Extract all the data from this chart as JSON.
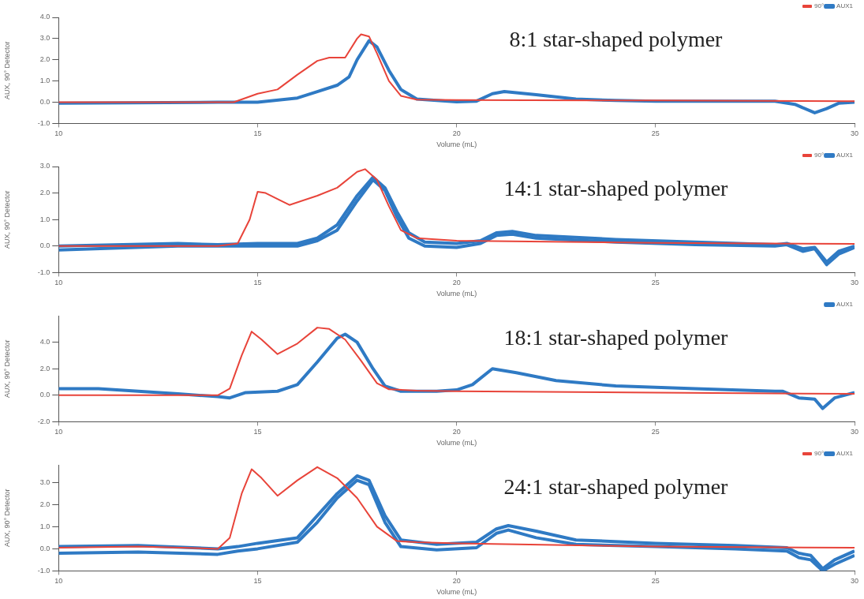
{
  "chart_data": [
    {
      "type": "line",
      "title": "8:1 star-shaped polymer",
      "xlabel": "Volume (mL)",
      "ylabel": "AUX, 90° Detector",
      "xlim": [
        10,
        30
      ],
      "xticks": [
        10,
        15,
        20,
        25,
        30
      ],
      "ylim": [
        -1,
        4
      ],
      "yticks": [
        {
          "value": -1,
          "label": "-1.0"
        },
        {
          "value": 0,
          "label": "0.0"
        },
        {
          "value": 1,
          "label": "1.0"
        },
        {
          "value": 2,
          "label": "2.0"
        },
        {
          "value": 3,
          "label": "3.0"
        },
        {
          "value": 4,
          "label": "4.0"
        }
      ],
      "grid": false,
      "legend": "top right",
      "marker": "none",
      "line_style": "solid",
      "series": [
        {
          "name": "90°",
          "color": "#e8443a",
          "x": [
            10,
            14,
            14.4,
            15,
            15.5,
            16,
            16.5,
            16.8,
            17.2,
            17.5,
            17.6,
            17.8,
            18,
            18.3,
            18.6,
            19,
            20,
            25,
            30
          ],
          "values": [
            0,
            0,
            0,
            0.4,
            0.6,
            1.3,
            1.95,
            2.1,
            2.1,
            3.0,
            3.2,
            3.1,
            2.3,
            1.0,
            0.3,
            0.12,
            0.1,
            0.08,
            0.05
          ]
        },
        {
          "name": "AUX1",
          "color": "#2f7ac4",
          "x": [
            10,
            14,
            15,
            16,
            16.5,
            17,
            17.3,
            17.5,
            17.8,
            18,
            18.3,
            18.6,
            19,
            20,
            20.5,
            20.9,
            21.2,
            22,
            23,
            24,
            25,
            27,
            28,
            28.5,
            29,
            29.3,
            29.6,
            30
          ],
          "values": [
            -0.05,
            0,
            0,
            0.2,
            0.5,
            0.8,
            1.2,
            2.0,
            2.9,
            2.6,
            1.5,
            0.6,
            0.15,
            0.02,
            0.05,
            0.4,
            0.5,
            0.35,
            0.15,
            0.08,
            0.05,
            0.05,
            0.05,
            -0.1,
            -0.5,
            -0.3,
            -0.05,
            0
          ]
        }
      ]
    },
    {
      "type": "line",
      "title": "14:1 star-shaped polymer",
      "xlabel": "Volume (mL)",
      "ylabel": "AUX, 90° Detector",
      "xlim": [
        10,
        30
      ],
      "xticks": [
        10,
        15,
        20,
        25,
        30
      ],
      "ylim": [
        -1,
        3
      ],
      "yticks": [
        {
          "value": -1,
          "label": "-1.0"
        },
        {
          "value": 0,
          "label": "0.0"
        },
        {
          "value": 1,
          "label": "1.0"
        },
        {
          "value": 2,
          "label": "2.0"
        },
        {
          "value": 3,
          "label": "3.0"
        }
      ],
      "grid": false,
      "legend": "top right",
      "marker": "none",
      "line_style": "solid",
      "series": [
        {
          "name": "90°",
          "color": "#e8443a",
          "x": [
            10,
            14,
            14.5,
            14.8,
            15,
            15.2,
            15.8,
            16.5,
            17,
            17.5,
            17.7,
            18,
            18.3,
            18.6,
            19,
            20,
            25,
            30
          ],
          "values": [
            0,
            0,
            0.1,
            1.0,
            2.05,
            2.0,
            1.55,
            1.9,
            2.2,
            2.8,
            2.9,
            2.5,
            1.5,
            0.6,
            0.3,
            0.2,
            0.12,
            0.08
          ]
        },
        {
          "name": "AUX1",
          "color": "#2f7ac4",
          "x": [
            10,
            13,
            14,
            15,
            16,
            16.5,
            17,
            17.5,
            17.9,
            18.2,
            18.5,
            18.8,
            19.2,
            20,
            20.6,
            21,
            21.4,
            22,
            24,
            26,
            28,
            28.3,
            28.7,
            29,
            29.3,
            29.6,
            30
          ],
          "values": [
            0,
            0.1,
            0.05,
            0.1,
            0.1,
            0.3,
            0.8,
            1.9,
            2.6,
            2.2,
            1.3,
            0.5,
            0.15,
            0.1,
            0.2,
            0.5,
            0.55,
            0.4,
            0.25,
            0.15,
            0.05,
            0.1,
            -0.1,
            -0.05,
            -0.6,
            -0.2,
            0
          ]
        },
        {
          "color": "#2f7ac4",
          "x": [
            10,
            13,
            15,
            16,
            16.5,
            17,
            17.5,
            17.9,
            18.2,
            18.5,
            18.8,
            19.2,
            20,
            20.6,
            21,
            21.4,
            22,
            24,
            26,
            28,
            28.3,
            28.7,
            29,
            29.3,
            29.6,
            30
          ],
          "values": [
            -0.15,
            0,
            0,
            0,
            0.2,
            0.6,
            1.7,
            2.5,
            2.1,
            1.1,
            0.3,
            0,
            -0.05,
            0.1,
            0.4,
            0.45,
            0.3,
            0.15,
            0.05,
            0,
            0.05,
            -0.2,
            -0.1,
            -0.7,
            -0.3,
            -0.05
          ]
        }
      ]
    },
    {
      "type": "line",
      "title": "18:1 star-shaped polymer",
      "xlabel": "Volume (mL)",
      "ylabel": "AUX, 90° Detector",
      "xlim": [
        10,
        30
      ],
      "xticks": [
        10,
        15,
        20,
        25,
        30
      ],
      "ylim": [
        -2,
        6
      ],
      "yticks": [
        {
          "value": -2,
          "label": "-2.0"
        },
        {
          "value": 0,
          "label": "0.0"
        },
        {
          "value": 2,
          "label": "2.0"
        },
        {
          "value": 4,
          "label": "4.0"
        }
      ],
      "grid": false,
      "legend": "top right",
      "marker": "none",
      "line_style": "solid",
      "series": [
        {
          "color": "#e8443a",
          "x": [
            10,
            14,
            14.3,
            14.6,
            14.85,
            15.1,
            15.5,
            16,
            16.5,
            16.8,
            17.2,
            17.6,
            18,
            18.3,
            19,
            20,
            25,
            30
          ],
          "values": [
            0,
            0,
            0.5,
            3.0,
            4.8,
            4.2,
            3.1,
            3.9,
            5.1,
            5.0,
            4.2,
            2.6,
            0.9,
            0.45,
            0.35,
            0.3,
            0.2,
            0.1
          ]
        },
        {
          "name": "AUX1",
          "color": "#2f7ac4",
          "x": [
            10,
            11,
            12,
            13,
            14,
            14.3,
            14.7,
            15.5,
            16,
            16.5,
            17,
            17.2,
            17.5,
            17.9,
            18.2,
            18.6,
            19.5,
            20,
            20.4,
            20.9,
            21.5,
            22.5,
            24,
            26,
            28,
            28.2,
            28.6,
            29,
            29.2,
            29.5,
            30
          ],
          "values": [
            0.5,
            0.5,
            0.3,
            0.1,
            -0.1,
            -0.2,
            0.2,
            0.3,
            0.8,
            2.5,
            4.3,
            4.6,
            4.0,
            2.0,
            0.7,
            0.3,
            0.3,
            0.4,
            0.8,
            2.0,
            1.7,
            1.1,
            0.7,
            0.5,
            0.3,
            0.3,
            -0.2,
            -0.3,
            -1.0,
            -0.2,
            0.2
          ]
        }
      ]
    },
    {
      "type": "line",
      "title": "24:1 star-shaped polymer",
      "xlabel": "Volume (mL)",
      "ylabel": "AUX, 90° Detector",
      "xlim": [
        10,
        30
      ],
      "xticks": [
        10,
        15,
        20,
        25,
        30
      ],
      "ylim": [
        -1,
        3.8
      ],
      "yticks": [
        {
          "value": -1,
          "label": "-1.0"
        },
        {
          "value": 0,
          "label": "0.0"
        },
        {
          "value": 1,
          "label": "1.0"
        },
        {
          "value": 2,
          "label": "2.0"
        },
        {
          "value": 3,
          "label": "3.0"
        }
      ],
      "grid": false,
      "legend": "top right",
      "marker": "none",
      "line_style": "solid",
      "series": [
        {
          "name": "90°",
          "color": "#e8443a",
          "x": [
            10,
            12,
            14,
            14.3,
            14.6,
            14.85,
            15.1,
            15.5,
            16,
            16.5,
            17,
            17.5,
            18,
            18.5,
            19,
            20,
            25,
            30
          ],
          "values": [
            0.05,
            0.1,
            0,
            0.5,
            2.5,
            3.6,
            3.2,
            2.4,
            3.1,
            3.7,
            3.2,
            2.3,
            1.0,
            0.35,
            0.3,
            0.25,
            0.1,
            0.05
          ]
        },
        {
          "name": "AUX1",
          "color": "#2f7ac4",
          "x": [
            10,
            12,
            14,
            14.5,
            15,
            16,
            16.5,
            17,
            17.5,
            17.8,
            18.2,
            18.6,
            19.5,
            20.5,
            21,
            21.3,
            22,
            23,
            25,
            27,
            28.3,
            28.6,
            28.9,
            29.2,
            29.5,
            30
          ],
          "values": [
            0.1,
            0.15,
            0,
            0.1,
            0.25,
            0.5,
            1.5,
            2.5,
            3.3,
            3.1,
            1.5,
            0.4,
            0.2,
            0.3,
            0.9,
            1.05,
            0.8,
            0.4,
            0.25,
            0.15,
            0.05,
            -0.2,
            -0.3,
            -0.9,
            -0.5,
            -0.1
          ]
        },
        {
          "color": "#2f7ac4",
          "x": [
            10,
            12,
            14,
            14.5,
            15,
            16,
            16.5,
            17,
            17.5,
            17.8,
            18.2,
            18.6,
            19.5,
            20.5,
            21,
            21.3,
            22,
            23,
            25,
            27,
            28.3,
            28.6,
            28.9,
            29.2,
            29.5,
            30
          ],
          "values": [
            -0.2,
            -0.15,
            -0.25,
            -0.1,
            0,
            0.3,
            1.2,
            2.3,
            3.1,
            2.9,
            1.2,
            0.1,
            -0.05,
            0.05,
            0.7,
            0.85,
            0.5,
            0.2,
            0.1,
            0,
            -0.1,
            -0.4,
            -0.5,
            -1.0,
            -0.7,
            -0.3
          ]
        }
      ]
    }
  ]
}
